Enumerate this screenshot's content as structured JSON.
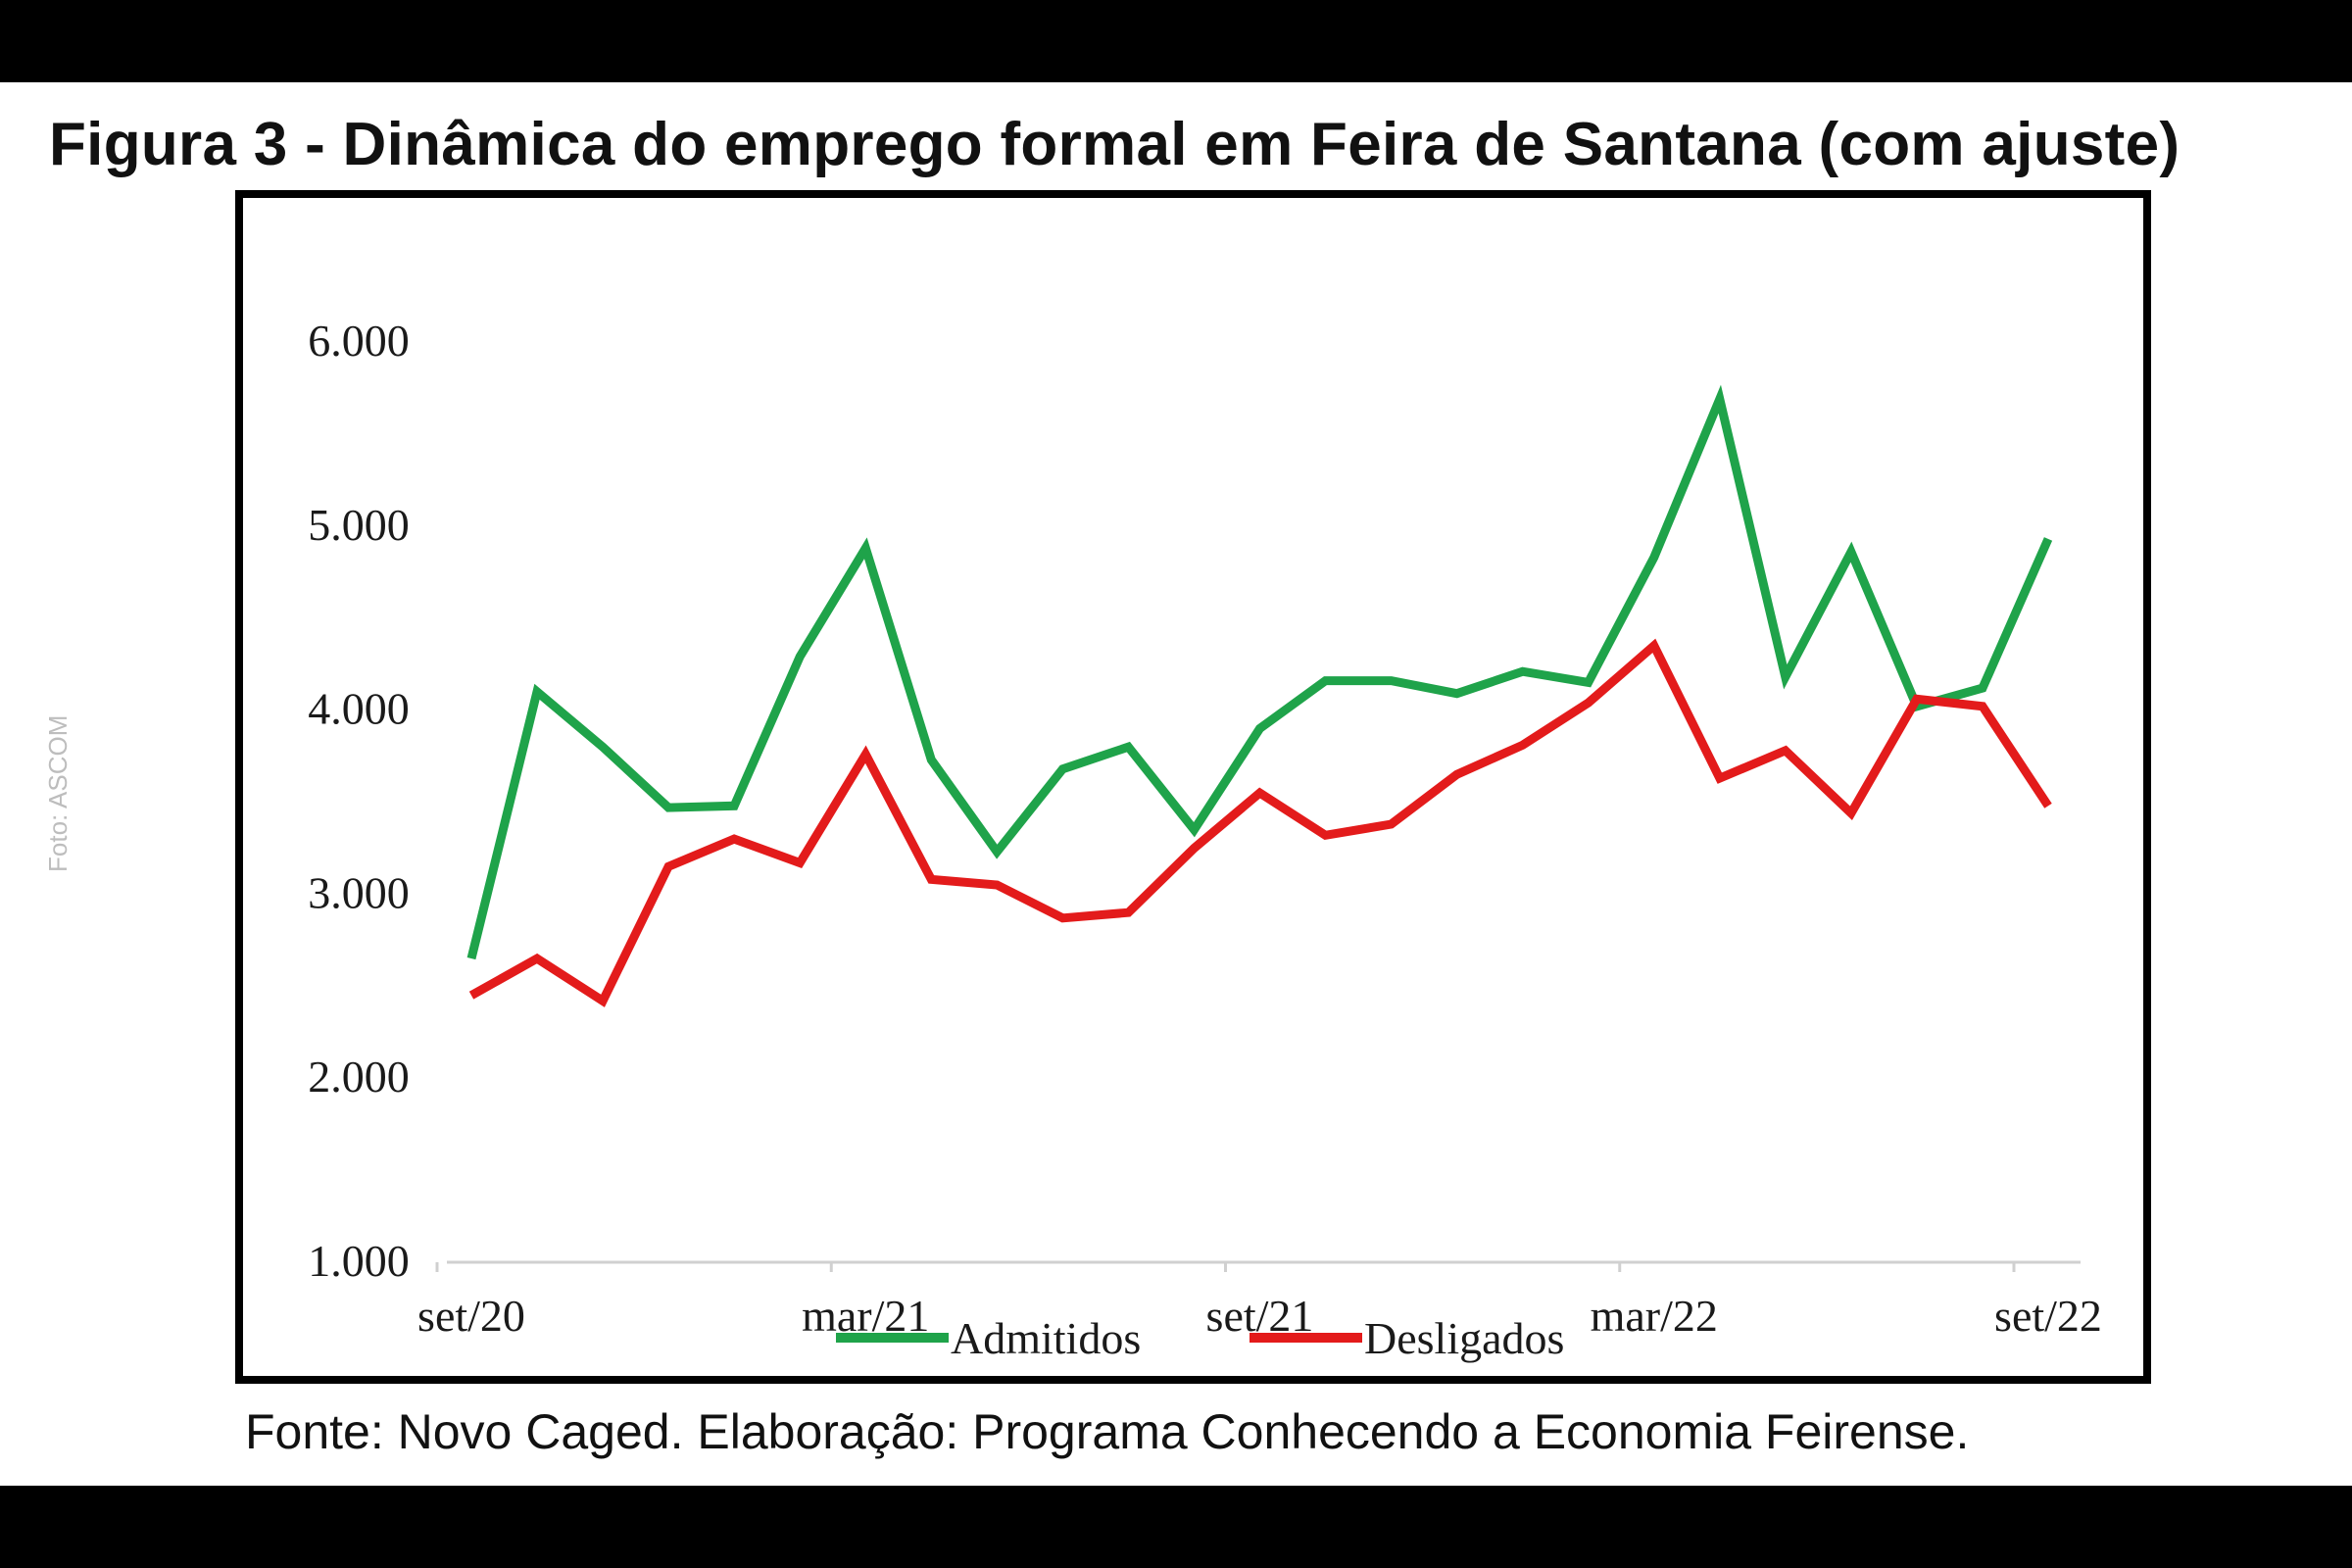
{
  "header": {
    "title": "Figura 3 - Dinâmica do emprego formal em Feira de Santana (com ajuste)"
  },
  "watermark": "Foto: ASCOM",
  "footer": {
    "source": "Fonte: Novo Caged. Elaboração: Programa Conhecendo a Economia Feirense."
  },
  "chart_data": {
    "type": "line",
    "title": "",
    "xlabel": "",
    "ylabel": "",
    "ylim": [
      1000,
      6000
    ],
    "y_ticks": [
      "1.000",
      "2.000",
      "3.000",
      "4.000",
      "5.000",
      "6.000"
    ],
    "x": [
      "set/20",
      "out/20",
      "nov/20",
      "dez/20",
      "jan/21",
      "fev/21",
      "mar/21",
      "abr/21",
      "mai/21",
      "jun/21",
      "jul/21",
      "ago/21",
      "set/21",
      "out/21",
      "nov/21",
      "dez/21",
      "jan/22",
      "fev/22",
      "mar/22",
      "abr/22",
      "mai/22",
      "jun/22",
      "jul/22",
      "ago/22",
      "set/22"
    ],
    "x_tick_labels": [
      "set/20",
      "mar/21",
      "set/21",
      "mar/22",
      "set/22"
    ],
    "x_tick_indices": [
      0,
      6,
      12,
      18,
      24
    ],
    "grid": false,
    "legend_position": "bottom",
    "series": [
      {
        "name": "Admitidos",
        "color": "#1fa34a",
        "values": [
          2650,
          4100,
          3800,
          3470,
          3480,
          4290,
          4880,
          3730,
          3230,
          3680,
          3800,
          3350,
          3900,
          4160,
          4160,
          4090,
          4210,
          4150,
          4830,
          5690,
          4180,
          4860,
          4020,
          4120,
          4930
        ]
      },
      {
        "name": "Desligados",
        "color": "#e31b1b",
        "values": [
          2450,
          2650,
          2420,
          3150,
          3300,
          3170,
          3760,
          3080,
          3050,
          2870,
          2900,
          3250,
          3550,
          3320,
          3380,
          3650,
          3810,
          4040,
          4350,
          3630,
          3780,
          3440,
          4060,
          4020,
          3480
        ]
      }
    ]
  }
}
